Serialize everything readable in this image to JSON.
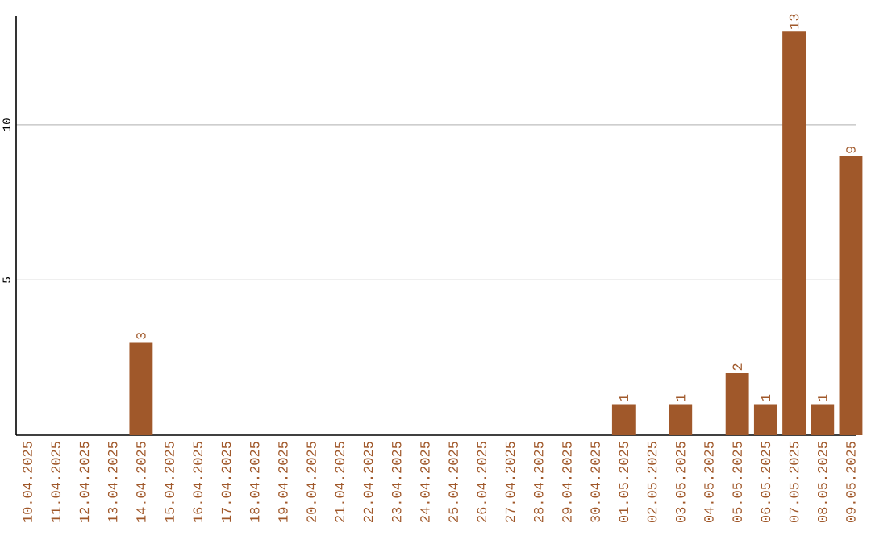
{
  "chart_data": {
    "type": "bar",
    "categories": [
      "10.04.2025",
      "11.04.2025",
      "12.04.2025",
      "13.04.2025",
      "14.04.2025",
      "15.04.2025",
      "16.04.2025",
      "17.04.2025",
      "18.04.2025",
      "19.04.2025",
      "20.04.2025",
      "21.04.2025",
      "22.04.2025",
      "23.04.2025",
      "24.04.2025",
      "25.04.2025",
      "26.04.2025",
      "27.04.2025",
      "28.04.2025",
      "29.04.2025",
      "30.04.2025",
      "01.05.2025",
      "02.05.2025",
      "03.05.2025",
      "04.05.2025",
      "05.05.2025",
      "06.05.2025",
      "07.05.2025",
      "08.05.2025",
      "09.05.2025"
    ],
    "values": [
      null,
      null,
      null,
      null,
      3,
      null,
      null,
      null,
      null,
      null,
      null,
      null,
      null,
      null,
      null,
      null,
      null,
      null,
      null,
      null,
      null,
      1,
      null,
      1,
      null,
      2,
      1,
      13,
      1,
      9
    ],
    "color": "#a0582a",
    "ylim": [
      0,
      13.5
    ],
    "yticks": [
      5,
      10
    ],
    "grid": "y",
    "data_labels": true
  }
}
